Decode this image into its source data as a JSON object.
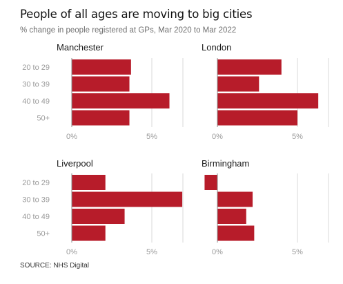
{
  "header": {
    "title": "People of all ages are moving to big cities",
    "subtitle": "% change in people registered at GPs, Mar 2020 to Mar 2022"
  },
  "footer": {
    "source": "SOURCE: NHS Digital"
  },
  "colors": {
    "bar": "#b71c2a",
    "grid": "#d9d9d9",
    "axis": "#888888",
    "tick_text": "#9a9a9a",
    "panel_title": "#1a1a1a"
  },
  "chart_data": [
    {
      "type": "bar",
      "orientation": "horizontal",
      "title": "Manchester",
      "categories": [
        "20 to 29",
        "30 to 39",
        "40 to 49",
        "50+"
      ],
      "values": [
        3.7,
        3.6,
        6.1,
        3.6
      ],
      "xlim": [
        0,
        6.9
      ],
      "xticks": [
        0,
        5
      ],
      "xtick_labels": [
        "0%",
        "5%"
      ],
      "show_category_labels": true
    },
    {
      "type": "bar",
      "orientation": "horizontal",
      "title": "London",
      "categories": [
        "20 to 29",
        "30 to 39",
        "40 to 49",
        "50+"
      ],
      "values": [
        4.0,
        2.6,
        6.3,
        5.0
      ],
      "xlim": [
        0,
        6.9
      ],
      "xticks": [
        0,
        5
      ],
      "xtick_labels": [
        "0%",
        "5%"
      ],
      "show_category_labels": false
    },
    {
      "type": "bar",
      "orientation": "horizontal",
      "title": "Liverpool",
      "categories": [
        "20 to 29",
        "30 to 39",
        "40 to 49",
        "50+"
      ],
      "values": [
        2.1,
        6.9,
        3.3,
        2.1
      ],
      "xlim": [
        0,
        6.9
      ],
      "xticks": [
        0,
        5
      ],
      "xtick_labels": [
        "0%",
        "5%"
      ],
      "show_category_labels": true
    },
    {
      "type": "bar",
      "orientation": "horizontal",
      "title": "Birmingham",
      "categories": [
        "20 to 29",
        "30 to 39",
        "40 to 49",
        "50+"
      ],
      "values": [
        -0.8,
        2.2,
        1.8,
        2.3
      ],
      "xlim": [
        -0.8,
        6.9
      ],
      "xticks": [
        0,
        5
      ],
      "xtick_labels": [
        "0%",
        "5%"
      ],
      "show_category_labels": false
    }
  ]
}
